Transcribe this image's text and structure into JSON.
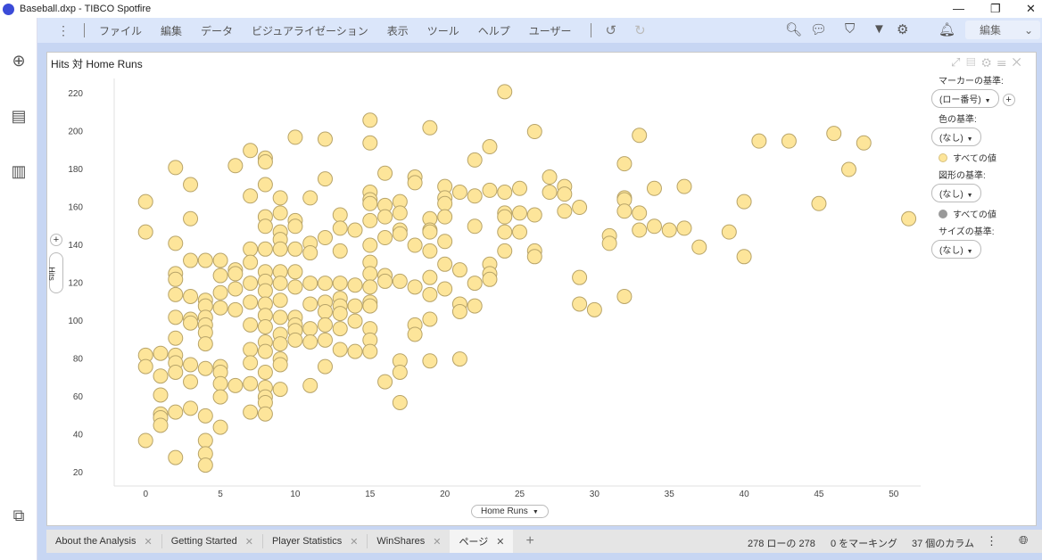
{
  "window": {
    "title": "Baseball.dxp - TIBCO Spotfire",
    "minimize": "—",
    "restore": "❐",
    "close": "✕"
  },
  "sidebar": {
    "icons": [
      "plus-circle-icon",
      "data-table-icon",
      "bar-chart-icon",
      "hierarchy-icon"
    ]
  },
  "toolbar": {
    "menus": [
      "ファイル",
      "編集",
      "データ",
      "ビジュアライゼーション",
      "表示",
      "ツール",
      "ヘルプ",
      "ユーザー"
    ],
    "mode": "編集",
    "icons": [
      "more-vertical-icon",
      "undo-icon",
      "redo-icon",
      "search-icon",
      "comments-icon",
      "bookmark-icon",
      "filter-icon",
      "gear-icon",
      "notification-icon"
    ]
  },
  "visualization": {
    "title": "Hits 対 Home Runs",
    "x_selector": "Home Runs",
    "y_selector": "Hits",
    "legend": {
      "marker_label": "マーカーの基準:",
      "marker_value": "(ロー番号)",
      "color_label": "色の基準:",
      "color_value": "(なし)",
      "color_item": "すべての値",
      "shape_label": "図形の基準:",
      "shape_value": "(なし)",
      "shape_item": "すべての値",
      "size_label": "サイズの基準:",
      "size_value": "(なし)"
    }
  },
  "tabs": [
    {
      "label": "About the Analysis"
    },
    {
      "label": "Getting Started"
    },
    {
      "label": "Player Statistics"
    },
    {
      "label": "WinShares"
    },
    {
      "label": "ページ",
      "active": true
    }
  ],
  "status": {
    "rows": "278 ローの 278",
    "marked": "0 をマーキング",
    "columns": "37 個のカラム"
  },
  "colors": {
    "marker_fill": "#fde59a",
    "marker_stroke": "#b8a469",
    "shape_dot": "#999999",
    "toolbar": "#dbe6fa"
  },
  "chart_data": {
    "type": "scatter",
    "xlabel": "Home Runs",
    "ylabel": "Hits",
    "xlim": [
      -2.1,
      51.8
    ],
    "ylim": [
      13,
      228
    ],
    "xticks": [
      0,
      5,
      10,
      15,
      20,
      25,
      30,
      35,
      40,
      45,
      50
    ],
    "yticks": [
      20,
      40,
      60,
      80,
      100,
      120,
      140,
      160,
      180,
      200,
      220
    ],
    "points": [
      [
        24,
        221
      ],
      [
        26,
        200
      ],
      [
        15,
        206
      ],
      [
        19,
        202
      ],
      [
        10,
        197
      ],
      [
        12,
        196
      ],
      [
        15,
        194
      ],
      [
        23,
        192
      ],
      [
        33,
        198
      ],
      [
        41,
        195
      ],
      [
        43,
        195
      ],
      [
        46,
        199
      ],
      [
        48,
        194
      ],
      [
        47,
        180
      ],
      [
        45,
        162
      ],
      [
        40,
        163
      ],
      [
        40,
        134
      ],
      [
        39,
        147
      ],
      [
        37,
        139
      ],
      [
        51,
        154
      ],
      [
        36,
        171
      ],
      [
        34,
        170
      ],
      [
        36,
        149
      ],
      [
        34,
        150
      ],
      [
        35,
        148
      ],
      [
        33,
        148
      ],
      [
        33,
        157
      ],
      [
        32,
        183
      ],
      [
        32,
        165
      ],
      [
        32,
        164
      ],
      [
        32,
        158
      ],
      [
        32,
        113
      ],
      [
        31,
        145
      ],
      [
        31,
        141
      ],
      [
        30,
        106
      ],
      [
        29,
        109
      ],
      [
        29,
        123
      ],
      [
        29,
        160
      ],
      [
        28,
        171
      ],
      [
        28,
        167
      ],
      [
        28,
        158
      ],
      [
        27,
        176
      ],
      [
        27,
        168
      ],
      [
        26,
        156
      ],
      [
        26,
        137
      ],
      [
        26,
        134
      ],
      [
        25,
        170
      ],
      [
        25,
        157
      ],
      [
        25,
        147
      ],
      [
        24,
        168
      ],
      [
        24,
        157
      ],
      [
        24,
        155
      ],
      [
        24,
        147
      ],
      [
        24,
        137
      ],
      [
        23,
        169
      ],
      [
        23,
        130
      ],
      [
        23,
        125
      ],
      [
        23,
        122
      ],
      [
        22,
        185
      ],
      [
        22,
        166
      ],
      [
        22,
        150
      ],
      [
        22,
        120
      ],
      [
        22,
        108
      ],
      [
        21,
        168
      ],
      [
        21,
        127
      ],
      [
        21,
        109
      ],
      [
        21,
        105
      ],
      [
        21,
        80
      ],
      [
        20,
        171
      ],
      [
        20,
        165
      ],
      [
        20,
        162
      ],
      [
        20,
        155
      ],
      [
        20,
        142
      ],
      [
        20,
        130
      ],
      [
        20,
        117
      ],
      [
        19,
        154
      ],
      [
        19,
        148
      ],
      [
        19,
        147
      ],
      [
        19,
        137
      ],
      [
        19,
        123
      ],
      [
        19,
        114
      ],
      [
        19,
        101
      ],
      [
        19,
        79
      ],
      [
        18,
        176
      ],
      [
        18,
        173
      ],
      [
        18,
        140
      ],
      [
        18,
        118
      ],
      [
        18,
        98
      ],
      [
        18,
        93
      ],
      [
        17,
        163
      ],
      [
        17,
        157
      ],
      [
        17,
        148
      ],
      [
        17,
        146
      ],
      [
        17,
        121
      ],
      [
        17,
        79
      ],
      [
        17,
        73
      ],
      [
        17,
        57
      ],
      [
        16,
        178
      ],
      [
        16,
        161
      ],
      [
        16,
        155
      ],
      [
        16,
        144
      ],
      [
        16,
        124
      ],
      [
        16,
        121
      ],
      [
        16,
        68
      ],
      [
        15,
        168
      ],
      [
        15,
        164
      ],
      [
        15,
        162
      ],
      [
        15,
        153
      ],
      [
        15,
        140
      ],
      [
        15,
        131
      ],
      [
        15,
        125
      ],
      [
        15,
        118
      ],
      [
        15,
        110
      ],
      [
        15,
        108
      ],
      [
        15,
        96
      ],
      [
        15,
        90
      ],
      [
        15,
        84
      ],
      [
        14,
        148
      ],
      [
        14,
        119
      ],
      [
        14,
        108
      ],
      [
        14,
        100
      ],
      [
        14,
        84
      ],
      [
        13,
        156
      ],
      [
        13,
        149
      ],
      [
        13,
        137
      ],
      [
        13,
        120
      ],
      [
        13,
        112
      ],
      [
        13,
        108
      ],
      [
        13,
        104
      ],
      [
        13,
        96
      ],
      [
        13,
        85
      ],
      [
        12,
        175
      ],
      [
        12,
        144
      ],
      [
        12,
        120
      ],
      [
        12,
        110
      ],
      [
        12,
        105
      ],
      [
        12,
        98
      ],
      [
        12,
        90
      ],
      [
        12,
        76
      ],
      [
        11,
        165
      ],
      [
        11,
        141
      ],
      [
        11,
        136
      ],
      [
        11,
        120
      ],
      [
        11,
        109
      ],
      [
        11,
        96
      ],
      [
        11,
        89
      ],
      [
        11,
        66
      ],
      [
        10,
        153
      ],
      [
        10,
        150
      ],
      [
        10,
        138
      ],
      [
        10,
        126
      ],
      [
        10,
        118
      ],
      [
        10,
        102
      ],
      [
        10,
        98
      ],
      [
        10,
        95
      ],
      [
        10,
        90
      ],
      [
        9,
        165
      ],
      [
        9,
        157
      ],
      [
        9,
        147
      ],
      [
        9,
        143
      ],
      [
        9,
        138
      ],
      [
        9,
        126
      ],
      [
        9,
        120
      ],
      [
        9,
        111
      ],
      [
        9,
        102
      ],
      [
        9,
        93
      ],
      [
        9,
        88
      ],
      [
        9,
        80
      ],
      [
        9,
        77
      ],
      [
        9,
        64
      ],
      [
        8,
        186
      ],
      [
        8,
        184
      ],
      [
        8,
        172
      ],
      [
        8,
        155
      ],
      [
        8,
        150
      ],
      [
        8,
        138
      ],
      [
        8,
        126
      ],
      [
        8,
        121
      ],
      [
        8,
        116
      ],
      [
        8,
        109
      ],
      [
        8,
        103
      ],
      [
        8,
        97
      ],
      [
        8,
        89
      ],
      [
        8,
        84
      ],
      [
        8,
        73
      ],
      [
        8,
        65
      ],
      [
        8,
        60
      ],
      [
        8,
        57
      ],
      [
        8,
        51
      ],
      [
        7,
        190
      ],
      [
        7,
        166
      ],
      [
        7,
        138
      ],
      [
        7,
        131
      ],
      [
        7,
        120
      ],
      [
        7,
        110
      ],
      [
        7,
        98
      ],
      [
        7,
        85
      ],
      [
        7,
        78
      ],
      [
        7,
        67
      ],
      [
        7,
        52
      ],
      [
        6,
        182
      ],
      [
        6,
        127
      ],
      [
        6,
        125
      ],
      [
        6,
        117
      ],
      [
        6,
        106
      ],
      [
        6,
        66
      ],
      [
        5,
        132
      ],
      [
        5,
        124
      ],
      [
        5,
        115
      ],
      [
        5,
        107
      ],
      [
        5,
        76
      ],
      [
        5,
        73
      ],
      [
        5,
        67
      ],
      [
        5,
        60
      ],
      [
        5,
        44
      ],
      [
        4,
        132
      ],
      [
        4,
        111
      ],
      [
        4,
        108
      ],
      [
        4,
        102
      ],
      [
        4,
        98
      ],
      [
        4,
        94
      ],
      [
        4,
        88
      ],
      [
        4,
        75
      ],
      [
        4,
        50
      ],
      [
        4,
        37
      ],
      [
        4,
        30
      ],
      [
        4,
        24
      ],
      [
        3,
        172
      ],
      [
        3,
        154
      ],
      [
        3,
        132
      ],
      [
        3,
        113
      ],
      [
        3,
        101
      ],
      [
        3,
        99
      ],
      [
        3,
        77
      ],
      [
        3,
        68
      ],
      [
        3,
        54
      ],
      [
        2,
        181
      ],
      [
        2,
        141
      ],
      [
        2,
        125
      ],
      [
        2,
        122
      ],
      [
        2,
        114
      ],
      [
        2,
        102
      ],
      [
        2,
        91
      ],
      [
        2,
        82
      ],
      [
        2,
        78
      ],
      [
        2,
        73
      ],
      [
        2,
        52
      ],
      [
        2,
        28
      ],
      [
        1,
        83
      ],
      [
        1,
        71
      ],
      [
        1,
        61
      ],
      [
        1,
        51
      ],
      [
        1,
        49
      ],
      [
        1,
        45
      ],
      [
        0,
        163
      ],
      [
        0,
        147
      ],
      [
        0,
        82
      ],
      [
        0,
        76
      ],
      [
        0,
        37
      ]
    ]
  }
}
